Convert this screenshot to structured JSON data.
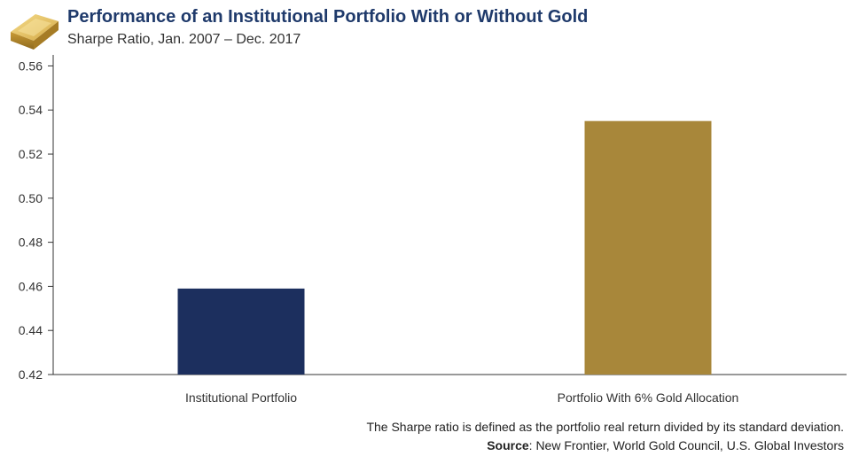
{
  "header": {
    "title": "Performance of an Institutional Portfolio With or Without Gold",
    "subtitle": "Sharpe Ratio, Jan. 2007 – Dec. 2017"
  },
  "footer": {
    "note": "The Sharpe ratio is defined as the portfolio real return divided by its standard deviation.",
    "source_label": "Source",
    "source_text": ": New Frontier, World Gold Council, U.S. Global Investors"
  },
  "colors": {
    "title": "#1f3a6b",
    "bar_institutional": "#1c2f5e",
    "bar_gold": "#a8873a",
    "axis": "#333333",
    "logo_gold_light": "#e8c76a",
    "logo_gold_dark": "#b88a2a"
  },
  "chart_data": {
    "type": "bar",
    "title": "Performance of an Institutional Portfolio With or Without Gold",
    "subtitle": "Sharpe Ratio, Jan. 2007 – Dec. 2017",
    "categories": [
      "Institutional Portfolio",
      "Portfolio With 6% Gold Allocation"
    ],
    "values": [
      0.459,
      0.535
    ],
    "xlabel": "",
    "ylabel": "",
    "ylim": [
      0.42,
      0.565
    ],
    "yticks": [
      "0.42",
      "0.44",
      "0.46",
      "0.48",
      "0.50",
      "0.52",
      "0.54",
      "0.56"
    ],
    "grid": false,
    "legend": "none"
  }
}
